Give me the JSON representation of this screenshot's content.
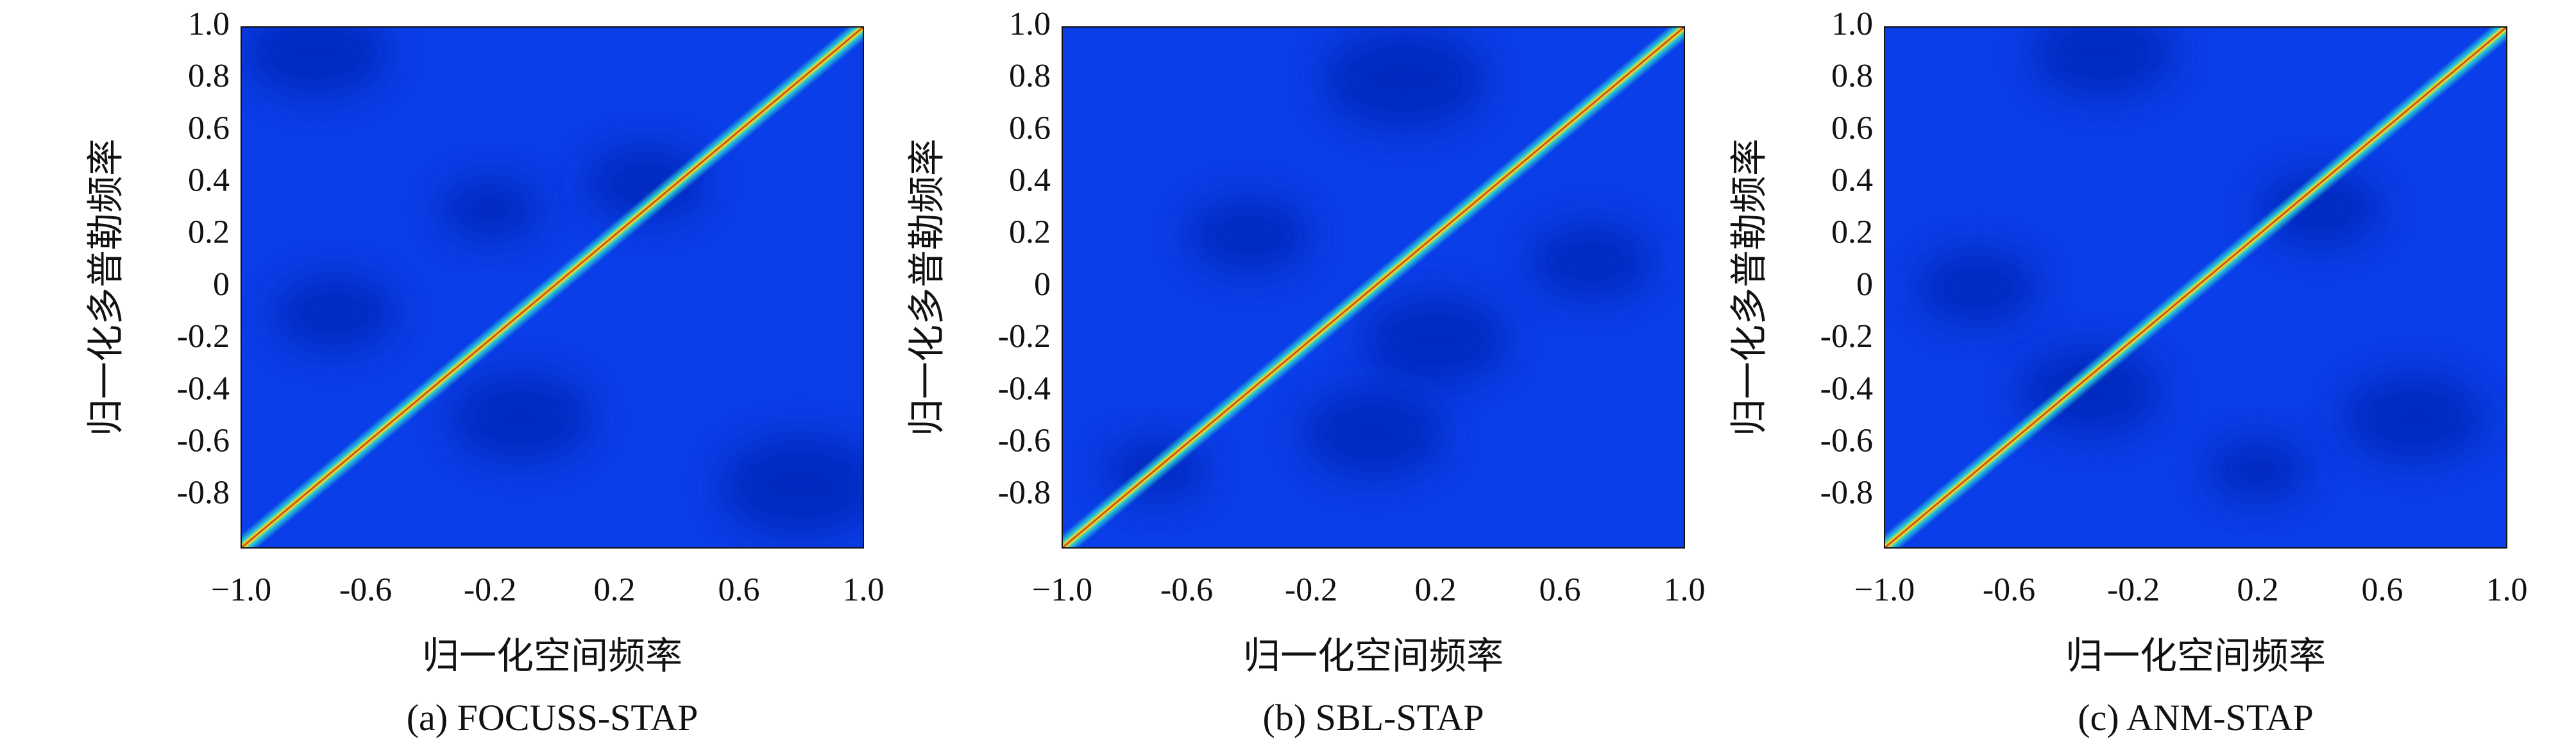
{
  "figure": {
    "panels": [
      {
        "caption": "(a) FOCUSS-STAP"
      },
      {
        "caption": "(b) SBL-STAP"
      },
      {
        "caption": "(c) ANM-STAP"
      }
    ]
  },
  "chart_data": [
    {
      "type": "heatmap",
      "title": "(a) FOCUSS-STAP",
      "xlabel": "归一化空间频率",
      "ylabel": "归一化多普勒频率",
      "xlim": [
        -1.0,
        1.0
      ],
      "ylim": [
        -1.0,
        1.0
      ],
      "xticks": [
        -1.0,
        -0.6,
        -0.2,
        0.2,
        0.6,
        1.0
      ],
      "xtick_labels": [
        "−1.0",
        "-0.6",
        "-0.2",
        "0.2",
        "0.6",
        "1.0"
      ],
      "yticks": [
        1.0,
        0.8,
        0.6,
        0.4,
        0.2,
        0,
        -0.2,
        -0.4,
        -0.6,
        -0.8
      ],
      "ytick_labels": [
        "1.0",
        "0.8",
        "0.6",
        "0.4",
        "0.2",
        "0",
        "-0.2",
        "-0.4",
        "-0.6",
        "-0.8"
      ],
      "ridge": {
        "from": [
          -1.0,
          -1.0
        ],
        "to": [
          1.0,
          1.0
        ]
      },
      "colormap": "jet",
      "grid": false
    },
    {
      "type": "heatmap",
      "title": "(b) SBL-STAP",
      "xlabel": "归一化空间频率",
      "ylabel": "归一化多普勒频率",
      "xlim": [
        -1.0,
        1.0
      ],
      "ylim": [
        -1.0,
        1.0
      ],
      "xticks": [
        -1.0,
        -0.6,
        -0.2,
        0.2,
        0.6,
        1.0
      ],
      "xtick_labels": [
        "−1.0",
        "-0.6",
        "-0.2",
        "0.2",
        "0.6",
        "1.0"
      ],
      "yticks": [
        1.0,
        0.8,
        0.6,
        0.4,
        0.2,
        0,
        -0.2,
        -0.4,
        -0.6,
        -0.8
      ],
      "ytick_labels": [
        "1.0",
        "0.8",
        "0.6",
        "0.4",
        "0.2",
        "0",
        "-0.2",
        "-0.4",
        "-0.6",
        "-0.8"
      ],
      "ridge": {
        "from": [
          -1.0,
          -1.0
        ],
        "to": [
          1.0,
          1.0
        ]
      },
      "colormap": "jet",
      "grid": false
    },
    {
      "type": "heatmap",
      "title": "(c) ANM-STAP",
      "xlabel": "归一化空间频率",
      "ylabel": "归一化多普勒频率",
      "xlim": [
        -1.0,
        1.0
      ],
      "ylim": [
        -1.0,
        1.0
      ],
      "xticks": [
        -1.0,
        -0.6,
        -0.2,
        0.2,
        0.6,
        1.0
      ],
      "xtick_labels": [
        "−1.0",
        "-0.6",
        "-0.2",
        "0.2",
        "0.6",
        "1.0"
      ],
      "yticks": [
        1.0,
        0.8,
        0.6,
        0.4,
        0.2,
        0,
        -0.2,
        -0.4,
        -0.6,
        -0.8
      ],
      "ytick_labels": [
        "1.0",
        "0.8",
        "0.6",
        "0.4",
        "0.2",
        "0",
        "-0.2",
        "-0.4",
        "-0.6",
        "-0.8"
      ],
      "ridge": {
        "from": [
          -1.0,
          -1.0
        ],
        "to": [
          1.0,
          1.0
        ]
      },
      "colormap": "jet",
      "grid": false
    }
  ],
  "colors": {
    "background": "#0a3ee8",
    "background_dark": "#0626b8",
    "ridge_core": "#c4291a",
    "ridge_mid": "#f0e020",
    "ridge_edge": "#2ad4d8"
  }
}
